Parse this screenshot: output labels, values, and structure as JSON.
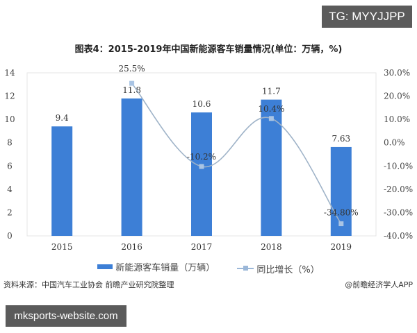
{
  "badges": {
    "tg": "TG: MYYJJPP",
    "site": "mksports-website.com"
  },
  "title": "图表4：2015-2019年中国新能源客车销量情况(单位：万辆，%)",
  "legend": {
    "bar": "新能源客车销量（万辆）",
    "line": "同比增长（%）"
  },
  "footer": {
    "source": "资料来源：中国汽车工业协会  前瞻产业研究院整理",
    "credit": "@前瞻经济学人APP"
  },
  "colors": {
    "bar": "#3d7fd6",
    "line": "#9bb7d8",
    "axis_text": "#444444",
    "badge_bg": "#5b5b5b"
  },
  "chart_data": {
    "type": "bar",
    "title": "图表4：2015-2019年中国新能源客车销量情况(单位：万辆，%)",
    "categories": [
      "2015",
      "2016",
      "2017",
      "2018",
      "2019"
    ],
    "series": [
      {
        "name": "新能源客车销量（万辆）",
        "type": "bar",
        "axis": "left",
        "values": [
          9.4,
          11.8,
          10.6,
          11.7,
          7.63
        ],
        "labels": [
          "9.4",
          "11.8",
          "10.6",
          "11.7",
          "7.63"
        ]
      },
      {
        "name": "同比增长（%）",
        "type": "line",
        "axis": "right",
        "values": [
          null,
          25.5,
          -10.2,
          10.4,
          -34.8
        ],
        "labels": [
          "",
          "25.5%",
          "-10.2%",
          "10.4%",
          "-34.80%"
        ]
      }
    ],
    "xlabel": "",
    "ylabel": "",
    "ylim": [
      0,
      14
    ],
    "yticks": [
      "0",
      "2",
      "4",
      "6",
      "8",
      "10",
      "12",
      "14"
    ],
    "y2lim": [
      -40,
      30
    ],
    "y2ticks": [
      "-40.0%",
      "-30.0%",
      "-20.0%",
      "-10.0%",
      "0.0%",
      "10.0%",
      "20.0%",
      "30.0%"
    ],
    "grid": false,
    "legend_position": "bottom"
  }
}
